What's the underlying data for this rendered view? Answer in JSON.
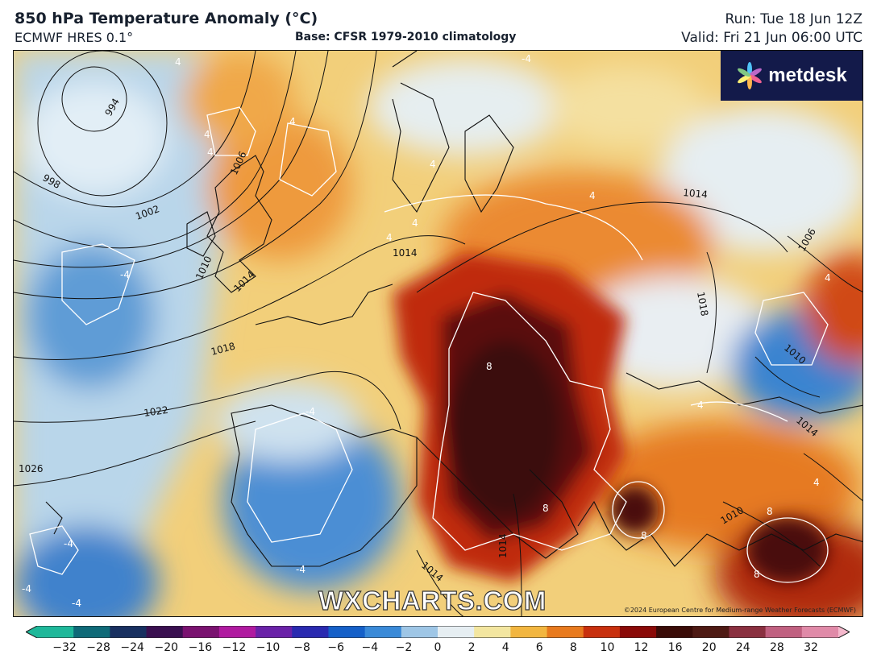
{
  "header": {
    "title": "850 hPa Temperature Anomaly (°C)",
    "model": "ECMWF HRES 0.1°",
    "base": "Base: CFSR 1979-2010 climatology",
    "run": "Run: Tue 18 Jun 12Z",
    "valid": "Valid: Fri 21 Jun 06:00 UTC"
  },
  "logo": {
    "text": "metdesk"
  },
  "watermark": "WXCHARTS.COM",
  "copyright": "©2024 European Centre for Medium-range Weather Forecasts (ECMWF)",
  "colorbar": {
    "ticks": [
      "−32",
      "−28",
      "−24",
      "−20",
      "−16",
      "−12",
      "−10",
      "−8",
      "−6",
      "−4",
      "−2",
      "0",
      "2",
      "4",
      "6",
      "8",
      "10",
      "12",
      "16",
      "20",
      "24",
      "28",
      "32"
    ],
    "colors": [
      "#1fb89a",
      "#0f6a78",
      "#183060",
      "#3a1050",
      "#7a1270",
      "#b01aa0",
      "#6a22a8",
      "#2a2ab0",
      "#1560c8",
      "#3a8ad8",
      "#9ec6e6",
      "#e6eef2",
      "#f3e6a0",
      "#f2b640",
      "#e87a1e",
      "#c8300e",
      "#8a0a08",
      "#3a0c08",
      "#4e1a14",
      "#8a3040",
      "#c06080",
      "#e08aa8",
      "#f4b8cc"
    ]
  },
  "pressure_contours": [
    "994",
    "998",
    "1002",
    "1006",
    "1010",
    "1014",
    "1014",
    "1018",
    "1018",
    "1022",
    "1026",
    "1014",
    "1014",
    "1010",
    "1006",
    "1014",
    "1010",
    "1014"
  ],
  "anomaly_contours": [
    "4",
    "4",
    "4",
    "4",
    "4",
    "4",
    "4",
    "-4",
    "-4",
    "-4",
    "-4",
    "-4",
    "-4",
    "8",
    "8",
    "8",
    "8",
    "8",
    "4",
    "4",
    "4",
    "4",
    "-4",
    "-4"
  ]
}
